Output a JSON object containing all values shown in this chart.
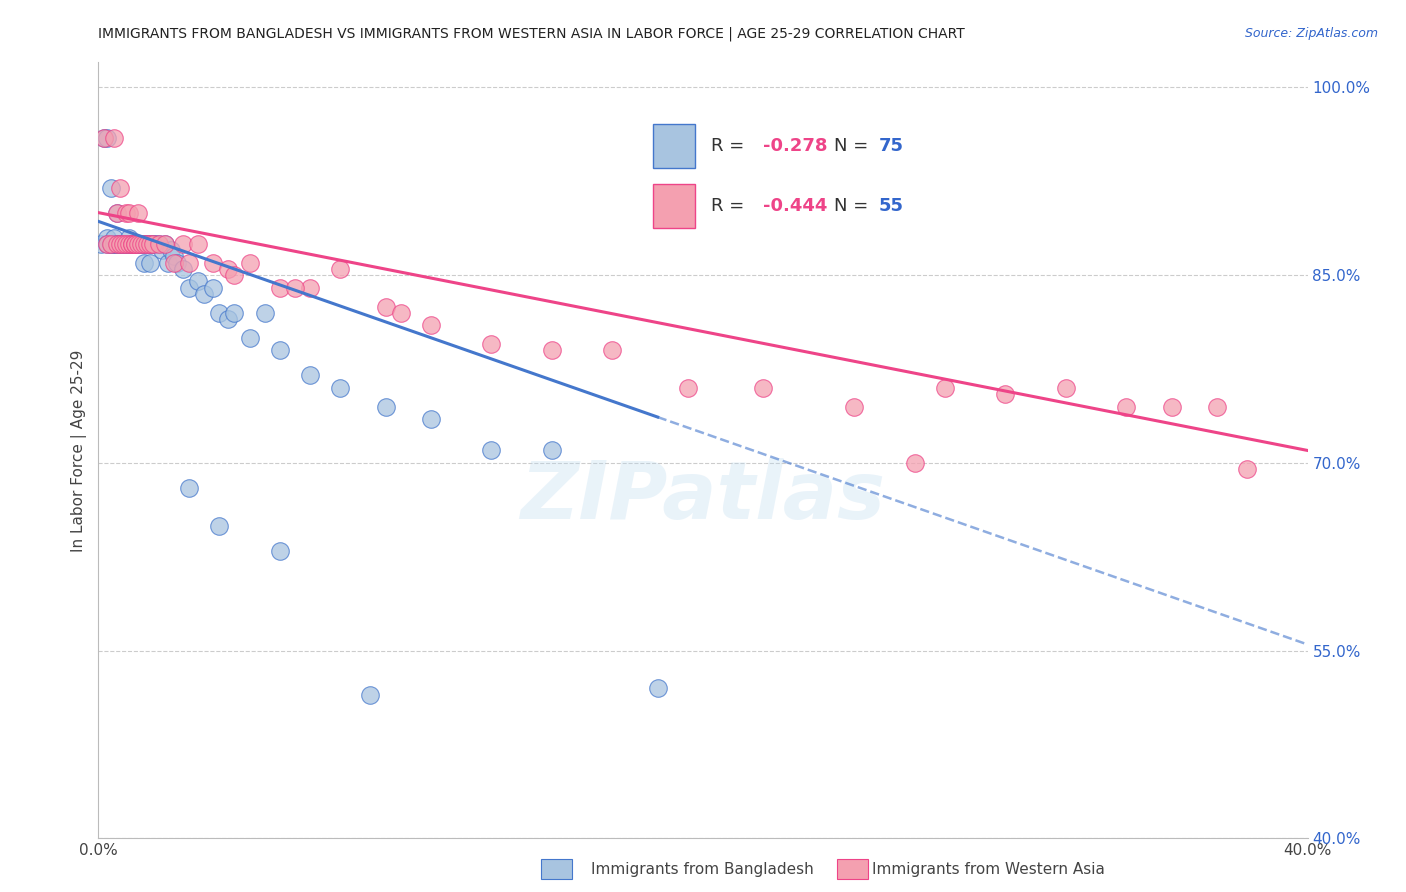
{
  "title": "IMMIGRANTS FROM BANGLADESH VS IMMIGRANTS FROM WESTERN ASIA IN LABOR FORCE | AGE 25-29 CORRELATION CHART",
  "source": "Source: ZipAtlas.com",
  "ylabel_label": "In Labor Force | Age 25-29",
  "xlim": [
    0.0,
    0.4
  ],
  "ylim": [
    0.4,
    1.02
  ],
  "ytick_labels_right": [
    "100.0%",
    "85.0%",
    "70.0%",
    "55.0%",
    "40.0%"
  ],
  "yticks_right": [
    1.0,
    0.85,
    0.7,
    0.55,
    0.4
  ],
  "R_bangladesh": -0.278,
  "N_bangladesh": 75,
  "R_western_asia": -0.444,
  "N_western_asia": 55,
  "color_bangladesh": "#a8c4e0",
  "color_western_asia": "#f4a0b0",
  "line_color_bangladesh": "#4477cc",
  "line_color_western_asia": "#ee4488",
  "watermark": "ZIPatlas",
  "legend_R_color": "#ee4488",
  "legend_N_color": "#3366cc",
  "blue_line_x0": 0.0,
  "blue_line_y0": 0.893,
  "blue_line_x1": 0.4,
  "blue_line_y1": 0.555,
  "blue_line_solid_end": 0.185,
  "pink_line_x0": 0.0,
  "pink_line_y0": 0.9,
  "pink_line_x1": 0.4,
  "pink_line_y1": 0.71,
  "bangladesh_x": [
    0.001,
    0.002,
    0.003,
    0.003,
    0.003,
    0.004,
    0.004,
    0.004,
    0.005,
    0.005,
    0.005,
    0.006,
    0.006,
    0.006,
    0.007,
    0.007,
    0.007,
    0.008,
    0.008,
    0.008,
    0.009,
    0.009,
    0.009,
    0.01,
    0.01,
    0.01,
    0.011,
    0.011,
    0.011,
    0.012,
    0.012,
    0.012,
    0.013,
    0.013,
    0.014,
    0.014,
    0.015,
    0.015,
    0.015,
    0.016,
    0.016,
    0.017,
    0.017,
    0.018,
    0.018,
    0.019,
    0.02,
    0.021,
    0.022,
    0.023,
    0.024,
    0.025,
    0.026,
    0.028,
    0.03,
    0.033,
    0.035,
    0.038,
    0.04,
    0.043,
    0.045,
    0.05,
    0.055,
    0.06,
    0.07,
    0.08,
    0.095,
    0.11,
    0.13,
    0.15,
    0.03,
    0.04,
    0.06,
    0.09,
    0.185
  ],
  "bangladesh_y": [
    0.875,
    0.96,
    0.96,
    0.88,
    0.875,
    0.875,
    0.875,
    0.92,
    0.875,
    0.875,
    0.88,
    0.875,
    0.9,
    0.875,
    0.875,
    0.875,
    0.875,
    0.875,
    0.875,
    0.875,
    0.875,
    0.875,
    0.875,
    0.875,
    0.875,
    0.88,
    0.875,
    0.875,
    0.875,
    0.875,
    0.875,
    0.875,
    0.875,
    0.875,
    0.875,
    0.875,
    0.875,
    0.86,
    0.875,
    0.875,
    0.875,
    0.875,
    0.86,
    0.875,
    0.875,
    0.875,
    0.875,
    0.87,
    0.875,
    0.86,
    0.87,
    0.865,
    0.86,
    0.855,
    0.84,
    0.845,
    0.835,
    0.84,
    0.82,
    0.815,
    0.82,
    0.8,
    0.82,
    0.79,
    0.77,
    0.76,
    0.745,
    0.735,
    0.71,
    0.71,
    0.68,
    0.65,
    0.63,
    0.515,
    0.52
  ],
  "western_asia_x": [
    0.002,
    0.003,
    0.004,
    0.005,
    0.006,
    0.006,
    0.007,
    0.007,
    0.008,
    0.009,
    0.009,
    0.01,
    0.01,
    0.011,
    0.011,
    0.012,
    0.012,
    0.013,
    0.013,
    0.014,
    0.015,
    0.016,
    0.017,
    0.018,
    0.02,
    0.022,
    0.025,
    0.028,
    0.03,
    0.033,
    0.038,
    0.043,
    0.05,
    0.06,
    0.07,
    0.08,
    0.095,
    0.11,
    0.13,
    0.15,
    0.17,
    0.195,
    0.22,
    0.25,
    0.28,
    0.3,
    0.32,
    0.34,
    0.355,
    0.37,
    0.27,
    0.38,
    0.1,
    0.065,
    0.045
  ],
  "western_asia_y": [
    0.96,
    0.875,
    0.875,
    0.96,
    0.875,
    0.9,
    0.875,
    0.92,
    0.875,
    0.875,
    0.9,
    0.875,
    0.9,
    0.875,
    0.875,
    0.875,
    0.875,
    0.875,
    0.9,
    0.875,
    0.875,
    0.875,
    0.875,
    0.875,
    0.875,
    0.875,
    0.86,
    0.875,
    0.86,
    0.875,
    0.86,
    0.855,
    0.86,
    0.84,
    0.84,
    0.855,
    0.825,
    0.81,
    0.795,
    0.79,
    0.79,
    0.76,
    0.76,
    0.745,
    0.76,
    0.755,
    0.76,
    0.745,
    0.745,
    0.745,
    0.7,
    0.695,
    0.82,
    0.84,
    0.85
  ]
}
